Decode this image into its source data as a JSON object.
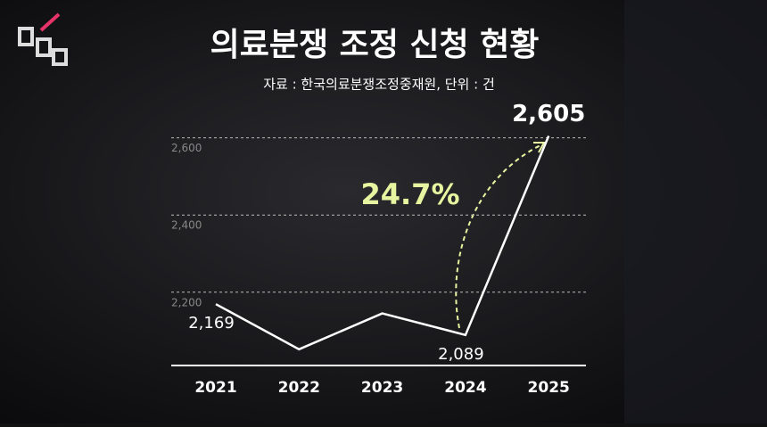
{
  "chart_data": {
    "type": "line",
    "title": "의료분쟁 조정 신청 현황",
    "subtitle": "자료 : 한국의료분쟁조정중재원,    단위 : 건",
    "categories": [
      "2021",
      "2022",
      "2023",
      "2024",
      "2025"
    ],
    "values": [
      2169,
      2052,
      2145,
      2089,
      2605
    ],
    "value_labels": [
      "2,169",
      null,
      null,
      "2,089",
      "2,605"
    ],
    "color": "#ffffff",
    "annotation": "24.7%",
    "ylim": [
      2010,
      2620
    ],
    "yticks": [
      {
        "value": 2200,
        "label": "2,200"
      },
      {
        "value": 2400,
        "label": "2,400"
      },
      {
        "value": 2600,
        "label": "2,600"
      }
    ],
    "grid": true
  }
}
